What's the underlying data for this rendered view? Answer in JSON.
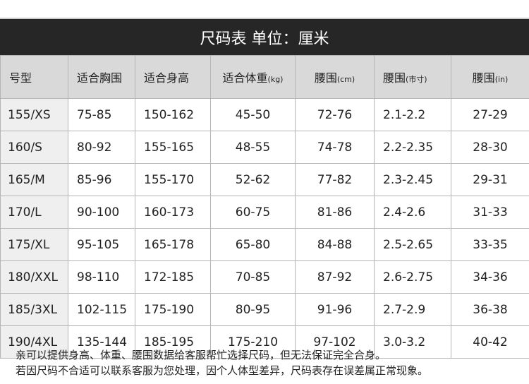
{
  "title": "尺码表 单位：厘米",
  "headers": [
    {
      "main": "号型",
      "unit": ""
    },
    {
      "main": "适合胸围",
      "unit": ""
    },
    {
      "main": "适合身高",
      "unit": ""
    },
    {
      "main": "适合体重",
      "unit": "(kg)"
    },
    {
      "main": "腰围",
      "unit": "(cm)"
    },
    {
      "main": "腰围",
      "unit": "(市寸)"
    },
    {
      "main": "腰围",
      "unit": "(in)"
    }
  ],
  "rows": [
    [
      "155/XS",
      "75-85",
      "150-162",
      "45-50",
      "72-76",
      "2.1-2.2",
      "27-29"
    ],
    [
      "160/S",
      "80-92",
      "155-165",
      "48-55",
      "74-78",
      "2.2-2.35",
      "28-30"
    ],
    [
      "165/M",
      "85-96",
      "155-170",
      "52-62",
      "77-82",
      "2.3-2.45",
      "29-31"
    ],
    [
      "170/L",
      "90-100",
      "160-173",
      "60-75",
      "81-86",
      "2.4-2.6",
      "31-33"
    ],
    [
      "175/XL",
      "95-105",
      "165-178",
      "65-80",
      "84-88",
      "2.5-2.65",
      "33-35"
    ],
    [
      "180/XXL",
      "98-110",
      "172-185",
      "70-85",
      "87-92",
      "2.6-2.75",
      "34-36"
    ],
    [
      "185/3XL",
      "102-115",
      "175-190",
      "80-95",
      "91-96",
      "2.7-2.9",
      "36-38"
    ],
    [
      "190/4XL",
      "135-144",
      "185-195",
      "175-210",
      "97-102",
      "3.0-3.2",
      "40-42"
    ]
  ],
  "notes": [
    "亲可以提供身高、体重、腰围数据给客服帮忙选择尺码，但无法保证完全合身。",
    "若因尺码不合适可以联系客服为您处理，因个人体型差异，尺码表存在误差属正常现象。"
  ]
}
